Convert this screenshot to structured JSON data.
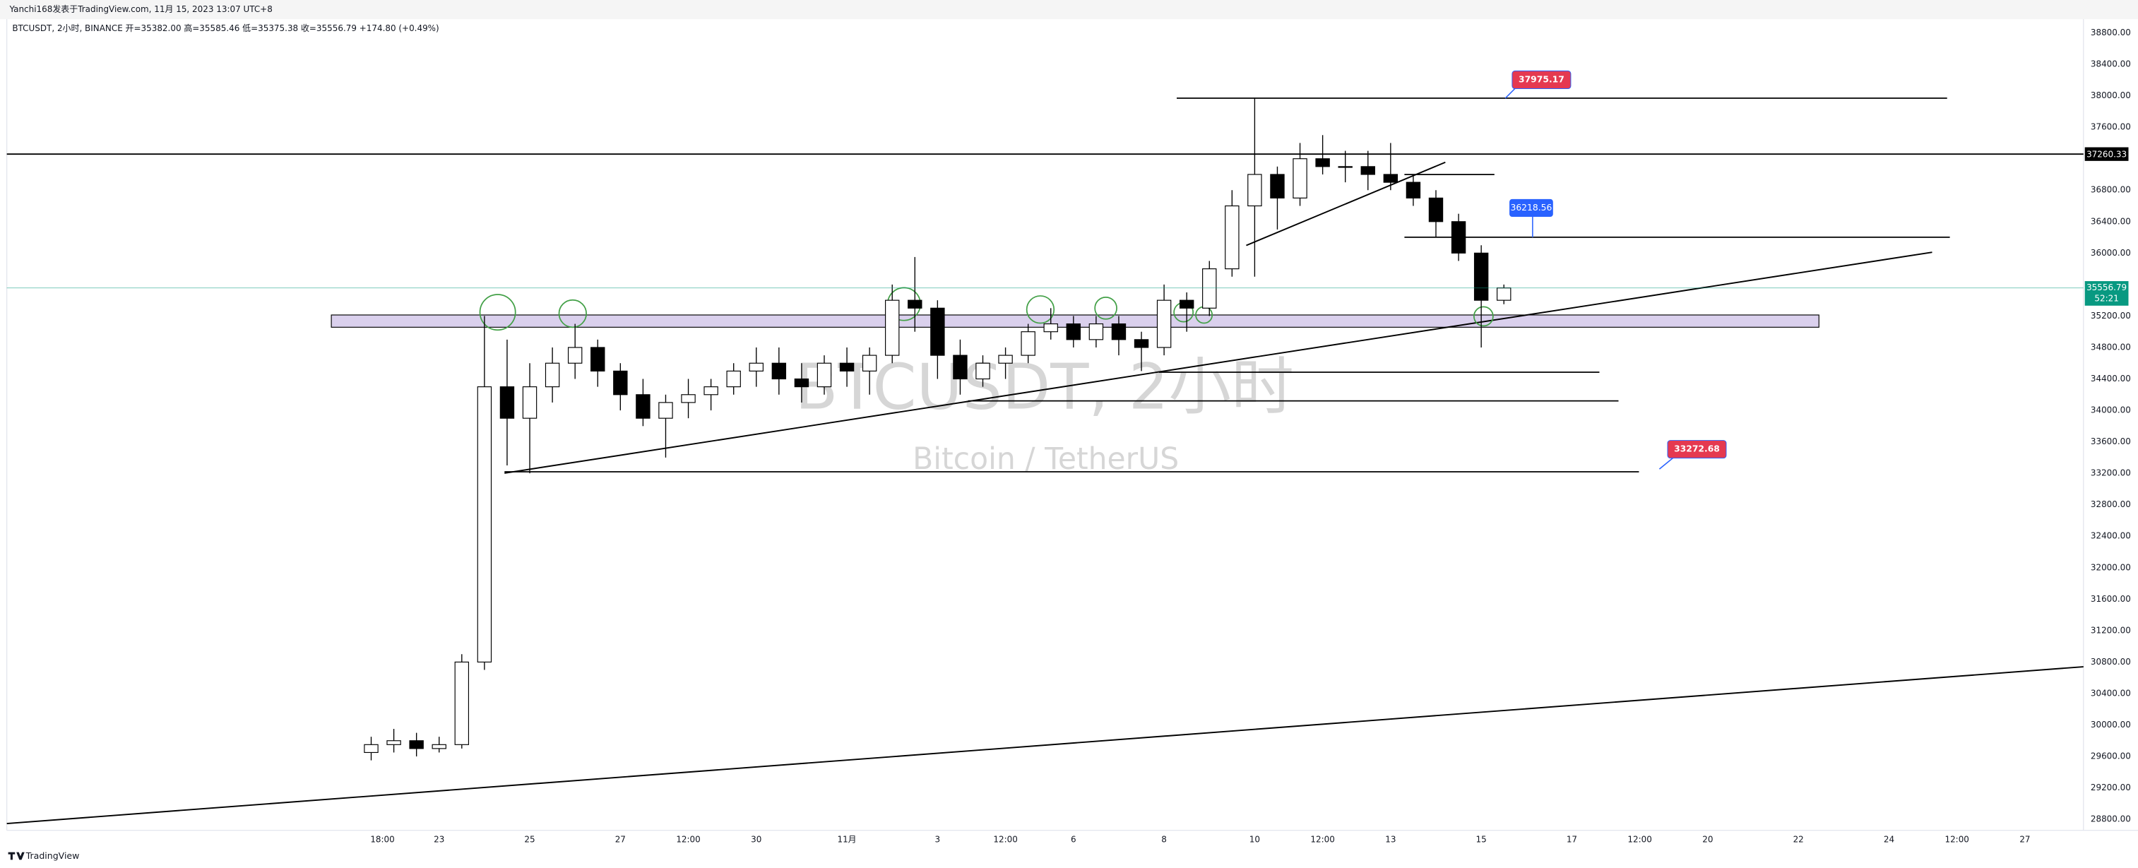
{
  "header": "Yanchi168发表于TradingView.com, 11月 15, 2023 13:07 UTC+8",
  "footer": "TradingView",
  "chart_data": {
    "type": "candlestick",
    "title": "BTCUSDT, 2小时, BINANCE 开=35382.00 高=35585.46 低=35375.38 收=35556.79 +174.80 (+0.49%)",
    "watermark": "BTCUSDT, 2小时",
    "watermark_subtitle": "Bitcoin / TetherUS",
    "x": [
      "10-21 12:00",
      "10-22 00:00",
      "10-22 12:00",
      "10-23 00:00",
      "10-23 12:00",
      "10-24 00:00",
      "10-24 12:00",
      "10-25 00:00",
      "10-25 12:00",
      "10-26 00:00",
      "10-26 12:00",
      "10-27 00:00",
      "10-27 12:00",
      "10-28 00:00",
      "10-28 12:00",
      "10-29 00:00",
      "10-29 12:00",
      "10-30 00:00",
      "10-30 12:00",
      "10-31 00:00",
      "10-31 12:00",
      "11-01 00:00",
      "11-01 12:00",
      "11-02 00:00",
      "11-02 12:00",
      "11-03 00:00",
      "11-03 12:00",
      "11-04 00:00",
      "11-04 12:00",
      "11-05 00:00",
      "11-05 12:00",
      "11-06 00:00",
      "11-06 12:00",
      "11-07 00:00",
      "11-07 12:00",
      "11-08 00:00",
      "11-08 12:00",
      "11-09 00:00",
      "11-09 12:00",
      "11-10 00:00",
      "11-10 12:00",
      "11-11 00:00",
      "11-11 12:00",
      "11-12 00:00",
      "11-12 12:00",
      "11-13 00:00",
      "11-13 12:00",
      "11-14 00:00",
      "11-14 12:00",
      "11-15 00:00",
      "11-15 12:00"
    ],
    "open": [
      29650,
      29750,
      29800,
      29700,
      29750,
      30800,
      34300,
      33900,
      34300,
      34600,
      34800,
      34500,
      34200,
      33900,
      34100,
      34200,
      34300,
      34500,
      34600,
      34400,
      34300,
      34600,
      34500,
      34700,
      35400,
      35300,
      34700,
      34400,
      34600,
      34700,
      35000,
      35100,
      34900,
      35100,
      34900,
      34800,
      35400,
      35300,
      35800,
      36600,
      37000,
      36700,
      37200,
      37100,
      37100,
      37000,
      36900,
      36700,
      36400,
      36000,
      35400
    ],
    "high": [
      29850,
      29950,
      29900,
      29850,
      30900,
      35200,
      34900,
      34600,
      34800,
      35100,
      34900,
      34600,
      34400,
      34200,
      34400,
      34400,
      34600,
      34800,
      34800,
      34600,
      34700,
      34800,
      34800,
      35600,
      35950,
      35400,
      34900,
      34700,
      34800,
      35100,
      35300,
      35200,
      35200,
      35200,
      35000,
      35600,
      35500,
      35900,
      36800,
      37975.17,
      37100,
      37400,
      37500,
      37300,
      37300,
      37400,
      37000,
      36800,
      36500,
      36100,
      35600
    ],
    "low": [
      29550,
      29650,
      29600,
      29650,
      29700,
      30700,
      33300,
      33200,
      34100,
      34400,
      34300,
      34000,
      33800,
      33400,
      33900,
      34000,
      34200,
      34300,
      34200,
      34100,
      34200,
      34300,
      34200,
      34600,
      35000,
      34400,
      34200,
      34300,
      34400,
      34600,
      34900,
      34800,
      34800,
      34700,
      34500,
      34700,
      35000,
      35200,
      35700,
      35700,
      36300,
      36600,
      37000,
      36900,
      36800,
      36800,
      36600,
      36200,
      35900,
      34800,
      35350
    ],
    "close": [
      29750,
      29800,
      29700,
      29750,
      30800,
      34300,
      33900,
      34300,
      34600,
      34800,
      34500,
      34200,
      33900,
      34100,
      34200,
      34300,
      34500,
      34600,
      34400,
      34300,
      34600,
      34500,
      34700,
      35400,
      35300,
      34700,
      34400,
      34600,
      34700,
      35000,
      35100,
      34900,
      35100,
      34900,
      34800,
      35400,
      35300,
      35800,
      36600,
      37000,
      36700,
      37200,
      37100,
      37100,
      37000,
      36900,
      36700,
      36400,
      36000,
      35400,
      35556.79
    ],
    "up_color": "#ffffff",
    "down_color": "#000000",
    "wick_color": "#000000",
    "xlim": [
      "10-13 11:00",
      "11-28 07:00"
    ],
    "xticks": [
      {
        "value": "10-21 18:00",
        "label": "18:00"
      },
      {
        "value": "10-23 00:00",
        "label": "23"
      },
      {
        "value": "10-25 00:00",
        "label": "25"
      },
      {
        "value": "10-27 00:00",
        "label": "27"
      },
      {
        "value": "10-28 12:00",
        "label": "12:00"
      },
      {
        "value": "10-30 00:00",
        "label": "30"
      },
      {
        "value": "11-01 00:00",
        "label": "11月"
      },
      {
        "value": "11-03 00:00",
        "label": "3"
      },
      {
        "value": "11-04 12:00",
        "label": "12:00"
      },
      {
        "value": "11-06 00:00",
        "label": "6"
      },
      {
        "value": "11-08 00:00",
        "label": "8"
      },
      {
        "value": "11-10 00:00",
        "label": "10"
      },
      {
        "value": "11-11 12:00",
        "label": "12:00"
      },
      {
        "value": "11-13 00:00",
        "label": "13"
      },
      {
        "value": "11-15 00:00",
        "label": "15"
      },
      {
        "value": "11-17 00:00",
        "label": "17"
      },
      {
        "value": "11-18 12:00",
        "label": "12:00"
      },
      {
        "value": "11-20 00:00",
        "label": "20"
      },
      {
        "value": "11-22 00:00",
        "label": "22"
      },
      {
        "value": "11-24 00:00",
        "label": "24"
      },
      {
        "value": "11-25 12:00",
        "label": "12:00"
      },
      {
        "value": "11-27 00:00",
        "label": "27"
      }
    ],
    "ylim": [
      28660,
      38975
    ],
    "yticks": [
      {
        "value": 28800,
        "label": "28800.00"
      },
      {
        "value": 29200,
        "label": "29200.00"
      },
      {
        "value": 29600,
        "label": "29600.00"
      },
      {
        "value": 30000,
        "label": "30000.00"
      },
      {
        "value": 30400,
        "label": "30400.00"
      },
      {
        "value": 30800,
        "label": "30800.00"
      },
      {
        "value": 31200,
        "label": "31200.00"
      },
      {
        "value": 31600,
        "label": "31600.00"
      },
      {
        "value": 32000,
        "label": "32000.00"
      },
      {
        "value": 32400,
        "label": "32400.00"
      },
      {
        "value": 32800,
        "label": "32800.00"
      },
      {
        "value": 33200,
        "label": "33200.00"
      },
      {
        "value": 33600,
        "label": "33600.00"
      },
      {
        "value": 34000,
        "label": "34000.00"
      },
      {
        "value": 34400,
        "label": "34400.00"
      },
      {
        "value": 34800,
        "label": "34800.00"
      },
      {
        "value": 35200,
        "label": "35200.00"
      },
      {
        "value": 36000,
        "label": "36000.00"
      },
      {
        "value": 36400,
        "label": "36400.00"
      },
      {
        "value": 36800,
        "label": "36800.00"
      },
      {
        "value": 37600,
        "label": "37600.00"
      },
      {
        "value": 38000,
        "label": "38000.00"
      },
      {
        "value": 38400,
        "label": "38400.00"
      },
      {
        "value": 38800,
        "label": "38800.00"
      }
    ],
    "grid": false,
    "annotations": [
      "37975.17",
      "36218.56",
      "33272.68"
    ],
    "price_labels": [
      "37260.33",
      "35556.79",
      "52:21"
    ]
  }
}
